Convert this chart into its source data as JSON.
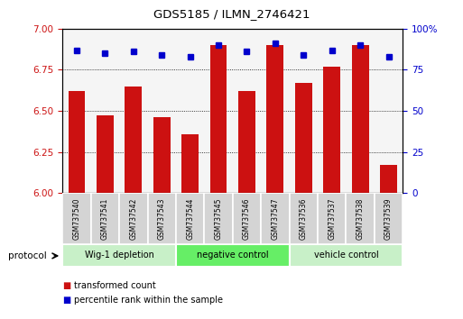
{
  "title": "GDS5185 / ILMN_2746421",
  "samples": [
    "GSM737540",
    "GSM737541",
    "GSM737542",
    "GSM737543",
    "GSM737544",
    "GSM737545",
    "GSM737546",
    "GSM737547",
    "GSM737536",
    "GSM737537",
    "GSM737538",
    "GSM737539"
  ],
  "transformed_count": [
    6.62,
    6.47,
    6.65,
    6.46,
    6.36,
    6.9,
    6.62,
    6.9,
    6.67,
    6.77,
    6.9,
    6.17
  ],
  "percentile_rank": [
    87,
    85,
    86,
    84,
    83,
    90,
    86,
    91,
    84,
    87,
    90,
    83
  ],
  "groups": [
    {
      "label": "Wig-1 depletion",
      "start": 0,
      "end": 4
    },
    {
      "label": "negative control",
      "start": 4,
      "end": 8
    },
    {
      "label": "vehicle control",
      "start": 8,
      "end": 12
    }
  ],
  "bar_color": "#cc1111",
  "dot_color": "#0000cc",
  "ylim_left": [
    6.0,
    7.0
  ],
  "ylim_right": [
    0,
    100
  ],
  "yticks_left": [
    6.0,
    6.25,
    6.5,
    6.75,
    7.0
  ],
  "yticks_right": [
    0,
    25,
    50,
    75,
    100
  ],
  "group_colors": [
    "#c8f0c8",
    "#66ee66",
    "#c8f0c8"
  ],
  "protocol_label": "protocol",
  "legend_red": "transformed count",
  "legend_blue": "percentile rank within the sample",
  "bar_width": 0.6,
  "ax_bg_color": "#ffffff",
  "plot_bg_color": "#f5f5f5"
}
